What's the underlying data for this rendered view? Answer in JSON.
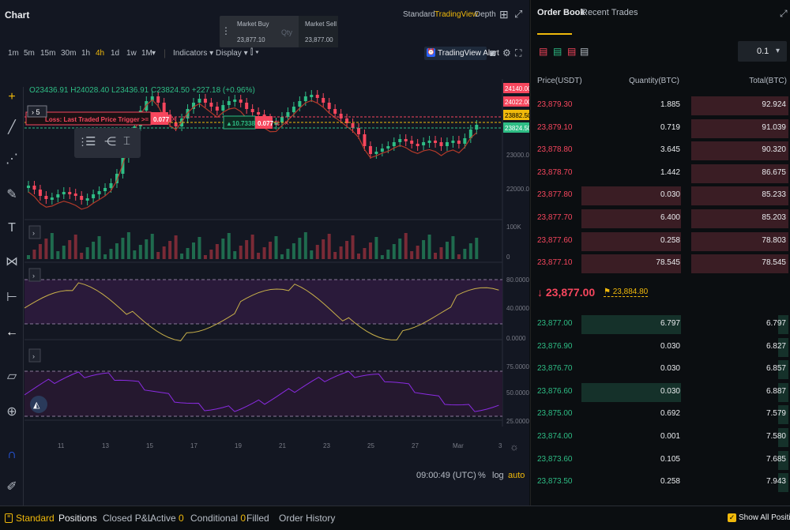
{
  "chart_header": {
    "title": "Chart",
    "views": [
      "Standard",
      "TradingView",
      "Depth"
    ],
    "active_view": "TradingView"
  },
  "market": {
    "buy_label": "Market Buy",
    "buy_price": "23,877.10",
    "qty_label": "Qty",
    "sell_label": "Market Sell",
    "sell_price": "23,877.00"
  },
  "timeframes": [
    "1m",
    "5m",
    "15m",
    "30m",
    "1h",
    "4h",
    "1d",
    "1w",
    "1M"
  ],
  "active_timeframe": "4h",
  "toolbar": {
    "indicators": "Indicators",
    "display": "Display",
    "alert": "TradingView Alert"
  },
  "ohlc": {
    "o": "O23436.91",
    "h": "H24028.40",
    "l": "L23436.91",
    "c": "C23824.50",
    "chg": "+227.18 (+0.96%)"
  },
  "price_axis": [
    "24140.00",
    "24022.00",
    "23882.50",
    "23824.50",
    "23000.00",
    "22000.00"
  ],
  "vol_axis": [
    "100K",
    "0"
  ],
  "ind1_axis": [
    "80.0000",
    "40.0000",
    "0.0000"
  ],
  "ind2_axis": [
    "75.0000",
    "50.0000",
    "25.0000"
  ],
  "date_axis": [
    "11",
    "13",
    "15",
    "17",
    "19",
    "21",
    "23",
    "25",
    "27",
    "Mar",
    "3"
  ],
  "order_lines": {
    "trigger_text": "Loss: Last Traded Price Trigger >= 24140",
    "trigger_qty": "0.077",
    "pos_entry": "10.7338",
    "pos_qty": "0.077",
    "count": "5"
  },
  "footer": {
    "time": "09:00:49 (UTC)",
    "pct": "%",
    "log": "log",
    "auto": "auto"
  },
  "orderbook": {
    "tabs": [
      "Order Book",
      "Recent Trades"
    ],
    "precision": "0.1",
    "headers": [
      "Price(USDT)",
      "Quantity(BTC)",
      "Total(BTC)"
    ],
    "asks": [
      {
        "p": "23,879.30",
        "q": "1.885",
        "t": "92.924",
        "qw": 0,
        "tw": 0.98
      },
      {
        "p": "23,879.10",
        "q": "0.719",
        "t": "91.039",
        "qw": 0,
        "tw": 0.98
      },
      {
        "p": "23,878.80",
        "q": "3.645",
        "t": "90.320",
        "qw": 0,
        "tw": 0.98
      },
      {
        "p": "23,878.70",
        "q": "1.442",
        "t": "86.675",
        "qw": 0,
        "tw": 0.98
      },
      {
        "p": "23,877.80",
        "q": "0.030",
        "t": "85.233",
        "qw": 1,
        "tw": 0.98
      },
      {
        "p": "23,877.70",
        "q": "6.400",
        "t": "85.203",
        "qw": 1,
        "tw": 0.98
      },
      {
        "p": "23,877.60",
        "q": "0.258",
        "t": "78.803",
        "qw": 1,
        "tw": 0.98
      },
      {
        "p": "23,877.10",
        "q": "78.545",
        "t": "78.545",
        "qw": 1,
        "tw": 0.98
      }
    ],
    "last_price": "23,877.00",
    "mark_price": "23,884.80",
    "bids": [
      {
        "p": "23,877.00",
        "q": "6.797",
        "t": "6.797",
        "qw": 1,
        "tw": 0.1
      },
      {
        "p": "23,876.90",
        "q": "0.030",
        "t": "6.827",
        "qw": 0,
        "tw": 0.1
      },
      {
        "p": "23,876.70",
        "q": "0.030",
        "t": "6.857",
        "qw": 0,
        "tw": 0.1
      },
      {
        "p": "23,876.60",
        "q": "0.030",
        "t": "6.887",
        "qw": 1,
        "tw": 0.1
      },
      {
        "p": "23,875.00",
        "q": "0.692",
        "t": "7.579",
        "qw": 0,
        "tw": 0.1
      },
      {
        "p": "23,874.00",
        "q": "0.001",
        "t": "7.580",
        "qw": 0,
        "tw": 0.1
      },
      {
        "p": "23,873.60",
        "q": "0.105",
        "t": "7.685",
        "qw": 0,
        "tw": 0.1
      },
      {
        "p": "23,873.50",
        "q": "0.258",
        "t": "7.943",
        "qw": 0,
        "tw": 0.1
      }
    ]
  },
  "bottom": {
    "tabs": [
      "Standard",
      "Positions",
      "Closed P&L",
      "Active",
      "Conditional",
      "Filled",
      "Order History"
    ],
    "active_count": "0",
    "conditional_count": "0",
    "show_all": "Show All Positions"
  },
  "colors": {
    "up": "#2ebd85",
    "down": "#f6465d",
    "accent": "#f0b90b",
    "purple": "#8a2be2"
  }
}
